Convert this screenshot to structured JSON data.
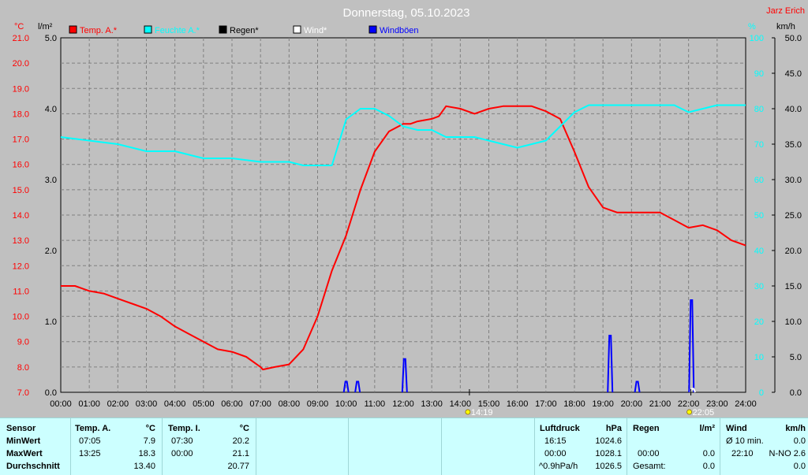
{
  "chart_data": {
    "type": "line",
    "title": "Donnerstag, 05.10.2023",
    "author": "Jarz Erich",
    "x_tick_labels": [
      "00:00",
      "01:00",
      "02:00",
      "03:00",
      "04:00",
      "05:00",
      "06:00",
      "07:00",
      "08:00",
      "09:00",
      "10:00",
      "11:00",
      "12:00",
      "13:00",
      "14:00",
      "15:00",
      "16:00",
      "17:00",
      "18:00",
      "19:00",
      "20:00",
      "21:00",
      "22:00",
      "23:00",
      "24:00"
    ],
    "axes": {
      "temp": {
        "unit": "°C",
        "range": [
          7.0,
          21.0
        ],
        "ticks": [
          "7.0",
          "8.0",
          "9.0",
          "10.0",
          "11.0",
          "12.0",
          "13.0",
          "14.0",
          "15.0",
          "16.0",
          "17.0",
          "18.0",
          "19.0",
          "20.0",
          "21.0"
        ],
        "color": "#ff0000"
      },
      "rain": {
        "unit": "l/m²",
        "range": [
          0.0,
          5.0
        ],
        "ticks": [
          "0.0",
          "1.0",
          "2.0",
          "3.0",
          "4.0",
          "5.0"
        ],
        "color": "#000000"
      },
      "humidity": {
        "unit": "%",
        "range": [
          0,
          100
        ],
        "ticks": [
          "0",
          "10",
          "20",
          "30",
          "40",
          "50",
          "60",
          "70",
          "80",
          "90",
          "100"
        ],
        "color": "#00ffff"
      },
      "wind": {
        "unit": "km/h",
        "range": [
          0.0,
          50.0
        ],
        "ticks": [
          "0.0",
          "5.0",
          "10.0",
          "15.0",
          "20.0",
          "25.0",
          "30.0",
          "35.0",
          "40.0",
          "45.0",
          "50.0"
        ],
        "color": "#000000"
      }
    },
    "legend": [
      {
        "name": "Temp. A.*",
        "color": "#ff0000"
      },
      {
        "name": "Feuchte A.*",
        "color": "#00ffff"
      },
      {
        "name": "Regen*",
        "color": "#000000"
      },
      {
        "name": "Wind*",
        "color": "#ffffff"
      },
      {
        "name": "Windböen",
        "color": "#0000ff"
      }
    ],
    "series": [
      {
        "name": "Temp. A.*",
        "axis": "temp",
        "color": "#ff0000",
        "x": [
          0,
          0.25,
          0.5,
          0.75,
          1,
          1.5,
          2,
          2.5,
          3,
          3.5,
          4,
          4.5,
          5,
          5.5,
          6,
          6.5,
          7,
          7.08,
          7.5,
          8,
          8.25,
          8.5,
          9,
          9.5,
          10,
          10.5,
          11,
          11.5,
          12,
          12.25,
          12.5,
          13,
          13.25,
          13.5,
          14,
          14.5,
          15,
          15.5,
          16,
          16.5,
          17,
          17.5,
          18,
          18.5,
          19,
          19.5,
          20,
          20.5,
          21,
          21.5,
          22,
          22.5,
          23,
          23.5,
          24
        ],
        "y": [
          11.2,
          11.2,
          11.2,
          11.1,
          11.0,
          10.9,
          10.7,
          10.5,
          10.3,
          10.0,
          9.6,
          9.3,
          9.0,
          8.7,
          8.6,
          8.4,
          8.0,
          7.9,
          8.0,
          8.1,
          8.4,
          8.7,
          10.0,
          11.8,
          13.2,
          15.0,
          16.5,
          17.3,
          17.6,
          17.6,
          17.7,
          17.8,
          17.9,
          18.3,
          18.2,
          18.0,
          18.2,
          18.3,
          18.3,
          18.3,
          18.1,
          17.8,
          16.5,
          15.1,
          14.3,
          14.1,
          14.1,
          14.1,
          14.1,
          13.8,
          13.5,
          13.6,
          13.4,
          13.0,
          12.8
        ]
      },
      {
        "name": "Feuchte A.*",
        "axis": "humidity",
        "color": "#00ffff",
        "x": [
          0,
          1,
          2,
          3,
          4,
          5,
          6,
          7,
          8,
          8.5,
          9,
          9.5,
          10,
          10.5,
          11,
          11.5,
          12,
          12.5,
          13,
          13.5,
          14,
          14.5,
          15,
          15.5,
          16,
          16.5,
          17,
          17.5,
          18,
          18.5,
          19,
          19.5,
          20,
          20.5,
          21,
          21.5,
          22,
          22.5,
          23,
          23.5,
          24
        ],
        "y": [
          72,
          71,
          70,
          68,
          68,
          66,
          66,
          65,
          65,
          64,
          64,
          64,
          77,
          80,
          80,
          78,
          75,
          74,
          74,
          72,
          72,
          72,
          71,
          70,
          69,
          70,
          71,
          75,
          79,
          81,
          81,
          81,
          81,
          81,
          81,
          81,
          79,
          80,
          81,
          81,
          81
        ]
      },
      {
        "name": "Windböen",
        "axis": "wind",
        "color": "#0000ff",
        "events": [
          {
            "x": 10.0,
            "y": 1.5
          },
          {
            "x": 10.4,
            "y": 1.5
          },
          {
            "x": 12.05,
            "y": 4.7
          },
          {
            "x": 19.25,
            "y": 8.0
          },
          {
            "x": 20.2,
            "y": 1.5
          },
          {
            "x": 22.1,
            "y": 13.0
          }
        ]
      },
      {
        "name": "Wind*",
        "axis": "wind",
        "color": "#ffffff",
        "events": [
          {
            "x": 22.15,
            "y": 0.5
          }
        ]
      }
    ],
    "markers": [
      {
        "label": "14:19",
        "x": 14.32
      },
      {
        "label": "22:05",
        "x": 22.08
      }
    ],
    "grid": true
  },
  "table": {
    "sensor": {
      "header": "Sensor",
      "rows": [
        "MinWert",
        "MaxWert",
        "Durchschnitt"
      ]
    },
    "temp_a": {
      "header": "Temp. A.",
      "unit": "°C",
      "min_time": "07:05",
      "min_val": "7.9",
      "max_time": "13:25",
      "max_val": "18.3",
      "avg": "13.40"
    },
    "temp_i": {
      "header": "Temp. I.",
      "unit": "°C",
      "min_time": "07:30",
      "min_val": "20.2",
      "max_time": "00:00",
      "max_val": "21.1",
      "avg": "20.77"
    },
    "luftdruck": {
      "header": "Luftdruck",
      "unit": "hPa",
      "r1_time": "16:15",
      "r1_val": "1024.6",
      "r2_time": "00:00",
      "r2_val": "1028.1",
      "r3_label": "^0.9hPa/h",
      "r3_val": "1026.5"
    },
    "regen": {
      "header": "Regen",
      "unit": "l/m²",
      "r2_time": "00:00",
      "r2_val": "0.0",
      "r3_label": "Gesamt:",
      "r3_val": "0.0"
    },
    "wind": {
      "header": "Wind",
      "unit": "km/h",
      "r1_label": "Ø 10 min.",
      "r1_val": "0.0",
      "r2_time": "22:10",
      "r2_val": "N-NO 2.6",
      "r3_val": "0.0"
    }
  }
}
